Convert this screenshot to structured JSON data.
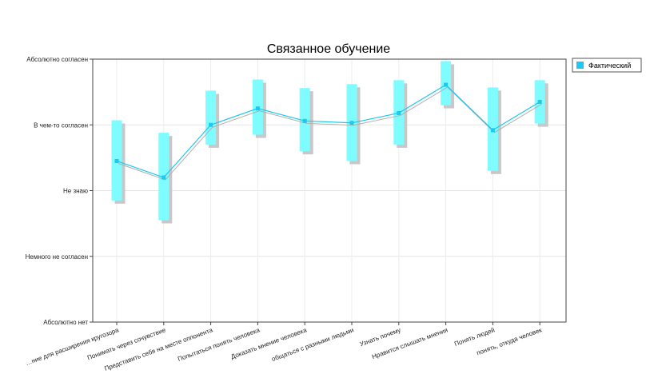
{
  "chart_data": {
    "type": "line",
    "title": "Связанное обучение",
    "xlabel": "",
    "ylabel": "",
    "y_levels": [
      "Абсолютно нет",
      "Немного не согласен",
      "Не знаю",
      "В чем-то согласен",
      "Абсолютно согласен"
    ],
    "ylim": [
      1,
      5
    ],
    "grid": true,
    "legend_position": "right",
    "categories": [
      "…ние для расширения кругозора",
      "Понимать через сочувствие",
      "Представить себя на месте оппонента",
      "Попытаться понять человека",
      "Доказать мнение человека",
      "общаться с разными людьми",
      "Узнать почему",
      "Нравится слышать мнения",
      "Понять людей",
      "понять, откуда человек"
    ],
    "series": [
      {
        "name": "Фактический",
        "values": [
          3.45,
          3.2,
          4.0,
          4.25,
          4.06,
          4.03,
          4.18,
          4.61,
          3.92,
          4.35
        ],
        "range_low": [
          2.85,
          2.55,
          3.7,
          3.85,
          3.6,
          3.45,
          3.7,
          4.3,
          3.3,
          4.02
        ],
        "range_high": [
          4.07,
          3.88,
          4.52,
          4.69,
          4.56,
          4.62,
          4.68,
          4.97,
          4.57,
          4.68
        ]
      }
    ],
    "colors": {
      "line": "#1ec8f0",
      "range_bar": "#7ffcff",
      "shadow": "#c8c8c8",
      "legend_marker": "#1ec8f0"
    }
  }
}
